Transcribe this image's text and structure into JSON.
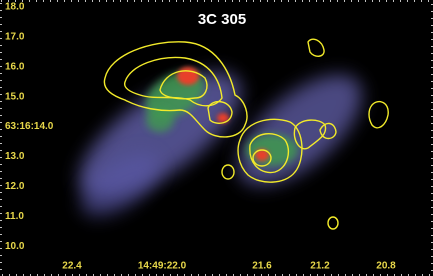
{
  "title": "3C 305",
  "y_labels": [
    "18.0",
    "17.0",
    "16.0",
    "15.0",
    "63:16:14.0",
    "13.0",
    "12.0",
    "11.0",
    "10.0"
  ],
  "x_labels": [
    "22.4",
    "14:49:22.0",
    "21.6",
    "21.2",
    "20.8"
  ]
}
